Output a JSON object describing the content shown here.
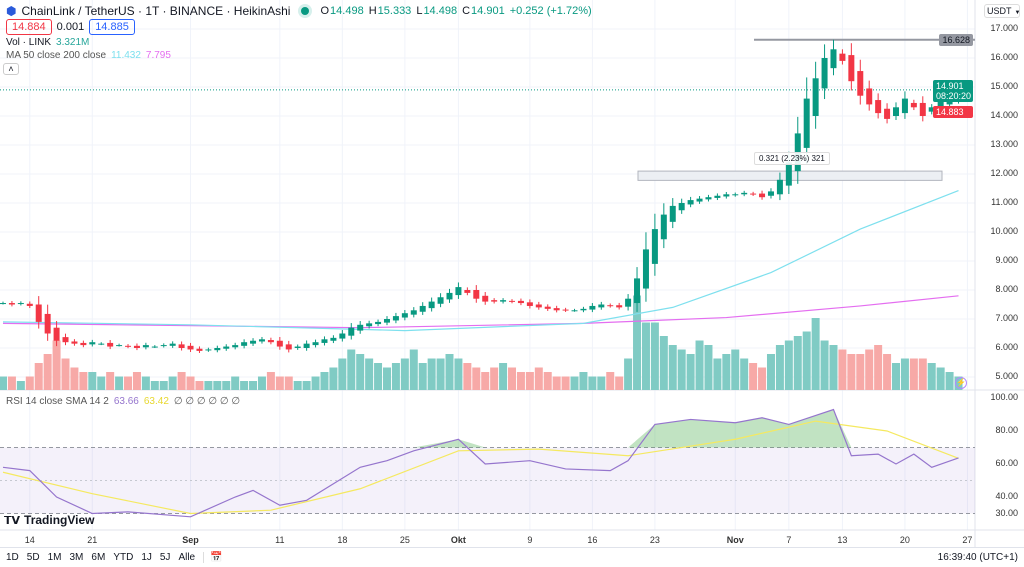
{
  "header": {
    "symbol": "ChainLink / TetherUS · 1T · BINANCE · HeikinAshi",
    "o_label": "O",
    "o": "14.498",
    "h_label": "H",
    "h": "15.333",
    "l_label": "L",
    "l": "14.498",
    "c_label": "C",
    "c": "14.901",
    "change": "+0.252 (+1.72%)",
    "bid": "14.884",
    "spread": "0.001",
    "ask": "14.885"
  },
  "vol_legend": {
    "label": "Vol · LINK",
    "value": "3.321M"
  },
  "ma_legend": {
    "label": "MA 50 close 200 close",
    "ma50": "11.432",
    "ma200": "7.795"
  },
  "rsi_legend": {
    "label": "RSI 14 close SMA 14 2",
    "rsi": "63.66",
    "sma": "63.42",
    "nans": "∅ ∅ ∅ ∅ ∅ ∅"
  },
  "currency": "USDT",
  "price_axis": [
    "17.000",
    "16.000",
    "15.000",
    "14.000",
    "13.000",
    "12.000",
    "11.000",
    "10.000",
    "9.000",
    "8.000",
    "7.000",
    "6.000",
    "5.000"
  ],
  "rsi_axis": [
    "100.00",
    "80.00",
    "60.00",
    "40.00",
    "30.00"
  ],
  "price_tags": {
    "high_line": "16.628",
    "last": "14.901",
    "countdown": "08:20:20",
    "bid": "14.883"
  },
  "measure_label": "0.321 (2.23%) 321",
  "date_axis": [
    {
      "label": "14",
      "date": "2023-08-14"
    },
    {
      "label": "21",
      "date": "2023-08-21"
    },
    {
      "label": "Sep",
      "date": "2023-09-01"
    },
    {
      "label": "11",
      "date": "2023-09-11"
    },
    {
      "label": "18",
      "date": "2023-09-18"
    },
    {
      "label": "25",
      "date": "2023-09-25"
    },
    {
      "label": "Okt",
      "date": "2023-10-01"
    },
    {
      "label": "9",
      "date": "2023-10-09"
    },
    {
      "label": "16",
      "date": "2023-10-16"
    },
    {
      "label": "23",
      "date": "2023-10-23"
    },
    {
      "label": "Nov",
      "date": "2023-11-01"
    },
    {
      "label": "7",
      "date": "2023-11-07"
    },
    {
      "label": "13",
      "date": "2023-11-13"
    },
    {
      "label": "20",
      "date": "2023-11-20"
    },
    {
      "label": "27",
      "date": "2023-11-27"
    }
  ],
  "periods": [
    "1D",
    "5D",
    "1M",
    "3M",
    "6M",
    "YTD",
    "1J",
    "5J",
    "Alle"
  ],
  "time": "16:39:40 (UTC+1)",
  "logo": "TradingView",
  "colors": {
    "up": "#089981",
    "down": "#f23645",
    "vol_up": "#80cbc4",
    "vol_down": "#f7a9a7",
    "ma50": "#7ee0ee",
    "ma200": "#e46ef0",
    "rsi": "#9575cd",
    "rsi_sma": "#f5e960"
  },
  "chart_data": {
    "type": "candlestick",
    "start_date": "2023-08-11",
    "price_range": [
      4.6,
      17.5
    ],
    "close": [
      7.55,
      7.5,
      7.55,
      7.45,
      6.9,
      6.5,
      6.25,
      6.2,
      6.15,
      6.1,
      6.2,
      6.15,
      6.05,
      6.1,
      6.05,
      6.0,
      6.1,
      6.05,
      6.1,
      6.15,
      6.0,
      5.95,
      5.9,
      5.95,
      6.0,
      6.05,
      6.1,
      6.2,
      6.25,
      6.3,
      6.2,
      6.05,
      5.95,
      6.05,
      6.15,
      6.2,
      6.3,
      6.35,
      6.5,
      6.7,
      6.8,
      6.85,
      6.9,
      7.0,
      7.1,
      7.2,
      7.3,
      7.45,
      7.6,
      7.75,
      7.9,
      8.1,
      7.9,
      7.7,
      7.6,
      7.6,
      7.65,
      7.6,
      7.55,
      7.45,
      7.4,
      7.35,
      7.3,
      7.3,
      7.3,
      7.35,
      7.45,
      7.5,
      7.45,
      7.4,
      7.7,
      8.4,
      9.4,
      10.1,
      10.6,
      10.9,
      11.0,
      11.1,
      11.15,
      11.2,
      11.25,
      11.3,
      11.3,
      11.35,
      11.3,
      11.2,
      11.4,
      11.8,
      12.4,
      13.4,
      14.6,
      15.3,
      16.0,
      16.3,
      15.9,
      15.2,
      14.7,
      14.4,
      14.1,
      13.9,
      14.3,
      14.6,
      14.3,
      14.0,
      14.3,
      14.5,
      14.65,
      14.9
    ],
    "volume_m": [
      3,
      3,
      2,
      3,
      6,
      8,
      11,
      7,
      5,
      4,
      4,
      3,
      4,
      3,
      3,
      4,
      3,
      2,
      2,
      3,
      4,
      3,
      2,
      2,
      2,
      2,
      3,
      2,
      2,
      3,
      4,
      3,
      3,
      2,
      2,
      3,
      4,
      5,
      7,
      9,
      8,
      7,
      6,
      5,
      6,
      7,
      9,
      6,
      7,
      7,
      8,
      7,
      6,
      5,
      4,
      5,
      6,
      5,
      4,
      4,
      5,
      4,
      3,
      3,
      3,
      4,
      3,
      3,
      4,
      3,
      7,
      21,
      15,
      15,
      12,
      10,
      9,
      8,
      11,
      10,
      7,
      8,
      9,
      7,
      6,
      5,
      8,
      10,
      11,
      12,
      13,
      16,
      11,
      10,
      9,
      8,
      8,
      9,
      10,
      8,
      6,
      7,
      7,
      7,
      6,
      5,
      4,
      3
    ],
    "ma50": [
      [
        "2023-08-11",
        6.9
      ],
      [
        "2023-09-01",
        6.8
      ],
      [
        "2023-09-25",
        6.6
      ],
      [
        "2023-10-15",
        6.85
      ],
      [
        "2023-10-25",
        7.4
      ],
      [
        "2023-11-05",
        8.6
      ],
      [
        "2023-11-15",
        10.1
      ],
      [
        "2023-11-26",
        11.43
      ]
    ],
    "ma200": [
      [
        "2023-08-11",
        6.85
      ],
      [
        "2023-09-20",
        6.7
      ],
      [
        "2023-10-15",
        6.85
      ],
      [
        "2023-10-31",
        7.05
      ],
      [
        "2023-11-15",
        7.45
      ],
      [
        "2023-11-26",
        7.8
      ]
    ],
    "rsi": [
      [
        "2023-08-11",
        58
      ],
      [
        "2023-08-14",
        56
      ],
      [
        "2023-08-17",
        40
      ],
      [
        "2023-08-21",
        30
      ],
      [
        "2023-08-25",
        31
      ],
      [
        "2023-09-01",
        28
      ],
      [
        "2023-09-06",
        40
      ],
      [
        "2023-09-08",
        44
      ],
      [
        "2023-09-11",
        35
      ],
      [
        "2023-09-14",
        38
      ],
      [
        "2023-09-20",
        58
      ],
      [
        "2023-09-23",
        62
      ],
      [
        "2023-09-26",
        68
      ],
      [
        "2023-10-01",
        75
      ],
      [
        "2023-10-04",
        60
      ],
      [
        "2023-10-09",
        62
      ],
      [
        "2023-10-13",
        57
      ],
      [
        "2023-10-18",
        56
      ],
      [
        "2023-10-20",
        62
      ],
      [
        "2023-10-23",
        84
      ],
      [
        "2023-10-27",
        87
      ],
      [
        "2023-11-01",
        85
      ],
      [
        "2023-11-04",
        88
      ],
      [
        "2023-11-07",
        84
      ],
      [
        "2023-11-12",
        93
      ],
      [
        "2023-11-14",
        65
      ],
      [
        "2023-11-17",
        66
      ],
      [
        "2023-11-19",
        60
      ],
      [
        "2023-11-21",
        66
      ],
      [
        "2023-11-23",
        58
      ],
      [
        "2023-11-26",
        63.66
      ]
    ],
    "rsi_sma": [
      [
        "2023-08-11",
        55
      ],
      [
        "2023-08-21",
        42
      ],
      [
        "2023-09-01",
        30
      ],
      [
        "2023-09-10",
        32
      ],
      [
        "2023-09-20",
        45
      ],
      [
        "2023-10-01",
        68
      ],
      [
        "2023-10-10",
        69
      ],
      [
        "2023-10-20",
        65
      ],
      [
        "2023-11-01",
        75
      ],
      [
        "2023-11-10",
        86
      ],
      [
        "2023-11-18",
        80
      ],
      [
        "2023-11-26",
        63.42
      ]
    ],
    "rsi_range": [
      26,
      102
    ],
    "rsi_bands": [
      70,
      30
    ]
  }
}
